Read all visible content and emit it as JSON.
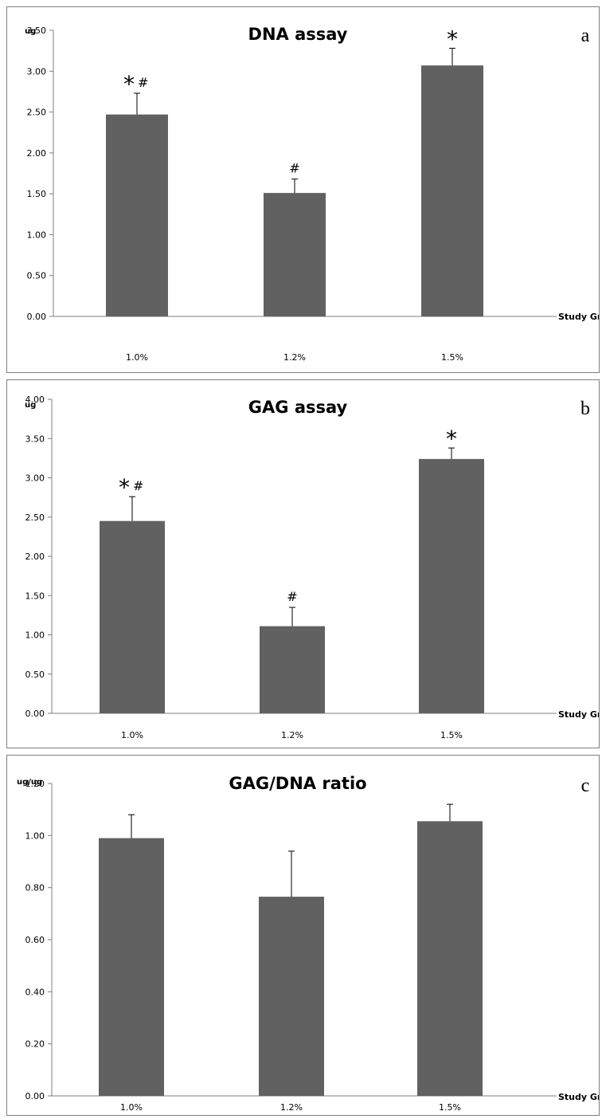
{
  "colors": {
    "bar": "#616161",
    "axis": "#7f7f7f",
    "errorbar": "#000000"
  },
  "chart_data": [
    {
      "panel_letter": "a",
      "type": "bar",
      "title": "DNA assay",
      "ylabel": "ug",
      "xlabel": "Study Group",
      "ylim": [
        0,
        3.5
      ],
      "ystep": 0.5,
      "categories": [
        "1.0%",
        "1.2%",
        "1.5%"
      ],
      "values": [
        2.47,
        1.51,
        3.07
      ],
      "errors": [
        0.26,
        0.17,
        0.21
      ],
      "annotations": [
        {
          "star": "*",
          "hash": "#"
        },
        {
          "star": "",
          "hash": "#"
        },
        {
          "star": "*",
          "hash": ""
        }
      ]
    },
    {
      "panel_letter": "b",
      "type": "bar",
      "title": "GAG assay",
      "ylabel": "ug",
      "xlabel": "Study Group",
      "ylim": [
        0,
        4.0
      ],
      "ystep": 0.5,
      "categories": [
        "1.0%",
        "1.2%",
        "1.5%"
      ],
      "values": [
        2.45,
        1.11,
        3.24
      ],
      "errors": [
        0.31,
        0.24,
        0.14
      ],
      "annotations": [
        {
          "star": "*",
          "hash": "#"
        },
        {
          "star": "",
          "hash": "#"
        },
        {
          "star": "*",
          "hash": ""
        }
      ]
    },
    {
      "panel_letter": "c",
      "type": "bar",
      "title": "GAG/DNA  ratio",
      "ylabel": "ug/ug",
      "xlabel": "Study Group",
      "ylim": [
        0,
        1.2
      ],
      "ystep": 0.2,
      "categories": [
        "1.0%",
        "1.2%",
        "1.5%"
      ],
      "values": [
        0.99,
        0.765,
        1.055
      ],
      "errors": [
        0.09,
        0.175,
        0.065
      ],
      "annotations": [
        {
          "star": "",
          "hash": ""
        },
        {
          "star": "",
          "hash": ""
        },
        {
          "star": "",
          "hash": ""
        }
      ]
    }
  ]
}
